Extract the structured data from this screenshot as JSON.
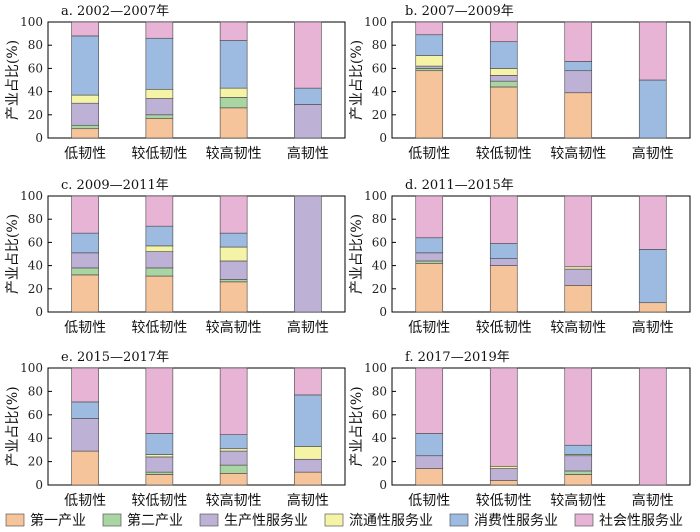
{
  "figure": {
    "ylabel": "产业占比(%)",
    "categories": [
      "低韧性",
      "较低韧性",
      "较高韧性",
      "高韧性"
    ],
    "yticks": [
      0,
      20,
      40,
      60,
      80,
      100
    ],
    "legend": [
      {
        "name": "第一产业",
        "color": "#F6C49A"
      },
      {
        "name": "第二产业",
        "color": "#A8D5A2"
      },
      {
        "name": "生产性服务业",
        "color": "#BDB1D6"
      },
      {
        "name": "流通性服务业",
        "color": "#F5F3A6"
      },
      {
        "name": "消费性服务业",
        "color": "#9DBBE1"
      },
      {
        "name": "社会性服务业",
        "color": "#E8B4D6"
      }
    ]
  },
  "chart_data": [
    {
      "type": "bar",
      "stacked": true,
      "title": "a. 2002—2007年",
      "categories": [
        "低韧性",
        "较低韧性",
        "较高韧性",
        "高韧性"
      ],
      "ylim": [
        0,
        100
      ],
      "series": [
        {
          "name": "第一产业",
          "values": [
            8,
            17,
            26,
            0
          ]
        },
        {
          "name": "第二产业",
          "values": [
            3,
            3,
            9,
            0
          ]
        },
        {
          "name": "生产性服务业",
          "values": [
            19,
            14,
            0,
            29
          ]
        },
        {
          "name": "流通性服务业",
          "values": [
            7,
            8,
            8,
            0
          ]
        },
        {
          "name": "消费性服务业",
          "values": [
            51,
            44,
            41,
            14
          ]
        },
        {
          "name": "社会性服务业",
          "values": [
            12,
            14,
            16,
            57
          ]
        }
      ]
    },
    {
      "type": "bar",
      "stacked": true,
      "title": "b. 2007—2009年",
      "categories": [
        "低韧性",
        "较低韧性",
        "较高韧性",
        "高韧性"
      ],
      "ylim": [
        0,
        100
      ],
      "series": [
        {
          "name": "第一产业",
          "values": [
            58,
            44,
            39,
            0
          ]
        },
        {
          "name": "第二产业",
          "values": [
            2,
            5,
            0,
            0
          ]
        },
        {
          "name": "生产性服务业",
          "values": [
            2,
            5,
            19,
            0
          ]
        },
        {
          "name": "流通性服务业",
          "values": [
            9,
            6,
            0,
            0
          ]
        },
        {
          "name": "消费性服务业",
          "values": [
            18,
            23,
            8,
            50
          ]
        },
        {
          "name": "社会性服务业",
          "values": [
            11,
            17,
            34,
            50
          ]
        }
      ]
    },
    {
      "type": "bar",
      "stacked": true,
      "title": "c. 2009—2011年",
      "categories": [
        "低韧性",
        "较低韧性",
        "较高韧性",
        "高韧性"
      ],
      "ylim": [
        0,
        100
      ],
      "series": [
        {
          "name": "第一产业",
          "values": [
            32,
            31,
            26,
            0
          ]
        },
        {
          "name": "第二产业",
          "values": [
            6,
            7,
            2,
            0
          ]
        },
        {
          "name": "生产性服务业",
          "values": [
            13,
            14,
            16,
            100
          ]
        },
        {
          "name": "流通性服务业",
          "values": [
            0,
            5,
            12,
            0
          ]
        },
        {
          "name": "消费性服务业",
          "values": [
            17,
            17,
            12,
            0
          ]
        },
        {
          "name": "社会性服务业",
          "values": [
            32,
            26,
            32,
            0
          ]
        }
      ]
    },
    {
      "type": "bar",
      "stacked": true,
      "title": "d. 2011—2015年",
      "categories": [
        "低韧性",
        "较低韧性",
        "较高韧性",
        "高韧性"
      ],
      "ylim": [
        0,
        100
      ],
      "series": [
        {
          "name": "第一产业",
          "values": [
            42,
            40,
            23,
            8
          ]
        },
        {
          "name": "第二产业",
          "values": [
            2,
            0,
            0,
            0
          ]
        },
        {
          "name": "生产性服务业",
          "values": [
            7,
            6,
            14,
            0
          ]
        },
        {
          "name": "流通性服务业",
          "values": [
            0,
            0,
            2,
            0
          ]
        },
        {
          "name": "消费性服务业",
          "values": [
            13,
            13,
            0,
            46
          ]
        },
        {
          "name": "社会性服务业",
          "values": [
            36,
            41,
            61,
            46
          ]
        }
      ]
    },
    {
      "type": "bar",
      "stacked": true,
      "title": "e. 2015—2017年",
      "categories": [
        "低韧性",
        "较低韧性",
        "较高韧性",
        "高韧性"
      ],
      "ylim": [
        0,
        100
      ],
      "series": [
        {
          "name": "第一产业",
          "values": [
            29,
            9,
            10,
            11
          ]
        },
        {
          "name": "第二产业",
          "values": [
            0,
            2,
            7,
            0
          ]
        },
        {
          "name": "生产性服务业",
          "values": [
            28,
            13,
            12,
            11
          ]
        },
        {
          "name": "流通性服务业",
          "values": [
            0,
            2,
            2,
            11
          ]
        },
        {
          "name": "消费性服务业",
          "values": [
            14,
            18,
            12,
            44
          ]
        },
        {
          "name": "社会性服务业",
          "values": [
            29,
            56,
            57,
            23
          ]
        }
      ]
    },
    {
      "type": "bar",
      "stacked": true,
      "title": "f. 2017—2019年",
      "categories": [
        "低韧性",
        "较低韧性",
        "较高韧性",
        "高韧性"
      ],
      "ylim": [
        0,
        100
      ],
      "series": [
        {
          "name": "第一产业",
          "values": [
            14,
            4,
            9,
            0
          ]
        },
        {
          "name": "第二产业",
          "values": [
            0,
            0,
            3,
            0
          ]
        },
        {
          "name": "生产性服务业",
          "values": [
            11,
            10,
            13,
            0
          ]
        },
        {
          "name": "流通性服务业",
          "values": [
            0,
            2,
            1,
            0
          ]
        },
        {
          "name": "消费性服务业",
          "values": [
            19,
            0,
            8,
            0
          ]
        },
        {
          "name": "社会性服务业",
          "values": [
            56,
            84,
            66,
            100
          ]
        }
      ]
    }
  ]
}
